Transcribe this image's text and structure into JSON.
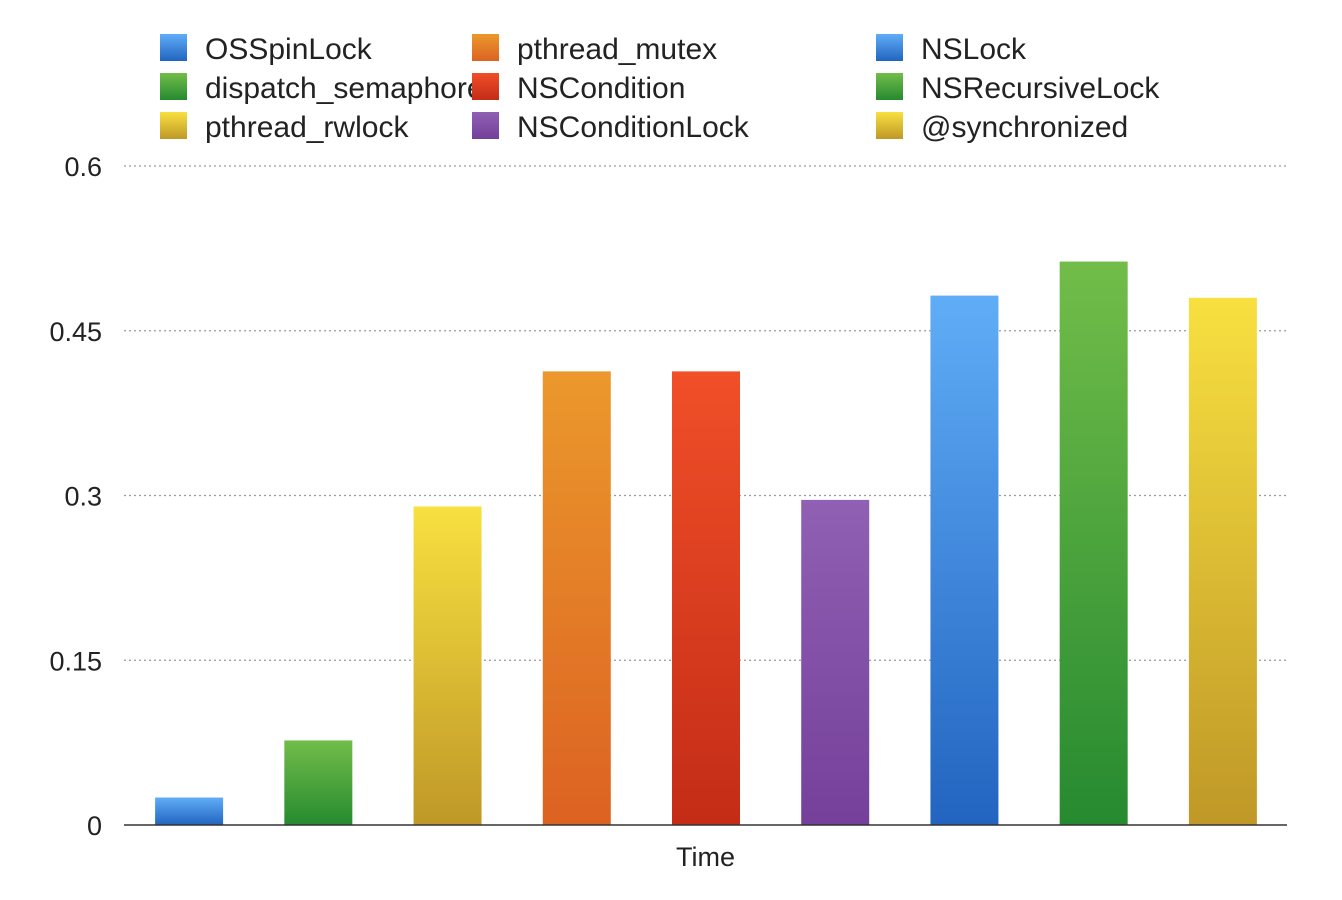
{
  "chart_data": {
    "type": "bar",
    "title": "",
    "xlabel": "Time",
    "ylabel": "",
    "ylim": [
      0,
      0.6
    ],
    "yticks": [
      "0",
      "0.15",
      "0.3",
      "0.45",
      "0.6"
    ],
    "ytick_values": [
      0,
      0.15,
      0.3,
      0.45,
      0.6
    ],
    "grid": "horizontal dotted",
    "legend_position": "top",
    "categories": [
      "Time"
    ],
    "series": [
      {
        "name": "OSSpinLock",
        "values": [
          0.025
        ],
        "color": "#3d8fe6"
      },
      {
        "name": "dispatch_semaphore",
        "values": [
          0.077
        ],
        "color": "#3fa73f"
      },
      {
        "name": "pthread_rwlock",
        "values": [
          0.29
        ],
        "color": "#e8c93a"
      },
      {
        "name": "pthread_mutex",
        "values": [
          0.413
        ],
        "color": "#e5852b"
      },
      {
        "name": "NSCondition",
        "values": [
          0.413
        ],
        "color": "#e23a22"
      },
      {
        "name": "NSConditionLock",
        "values": [
          0.296
        ],
        "color": "#8a52ad"
      },
      {
        "name": "NSLock",
        "values": [
          0.482
        ],
        "color": "#3d8fe6"
      },
      {
        "name": "NSRecursiveLock",
        "values": [
          0.513
        ],
        "color": "#3fa73f"
      },
      {
        "name": "@synchronized",
        "values": [
          0.48
        ],
        "color": "#e8c93a"
      }
    ],
    "gradients": {
      "#3d8fe6": [
        "#60adf7",
        "#2264c0"
      ],
      "#3fa73f": [
        "#72bd49",
        "#268a30"
      ],
      "#e8c93a": [
        "#f8e040",
        "#bf9827"
      ],
      "#e5852b": [
        "#eb982c",
        "#dc6222"
      ],
      "#e23a22": [
        "#f04f28",
        "#c42c17"
      ],
      "#8a52ad": [
        "#8f60b3",
        "#75409a"
      ]
    }
  }
}
